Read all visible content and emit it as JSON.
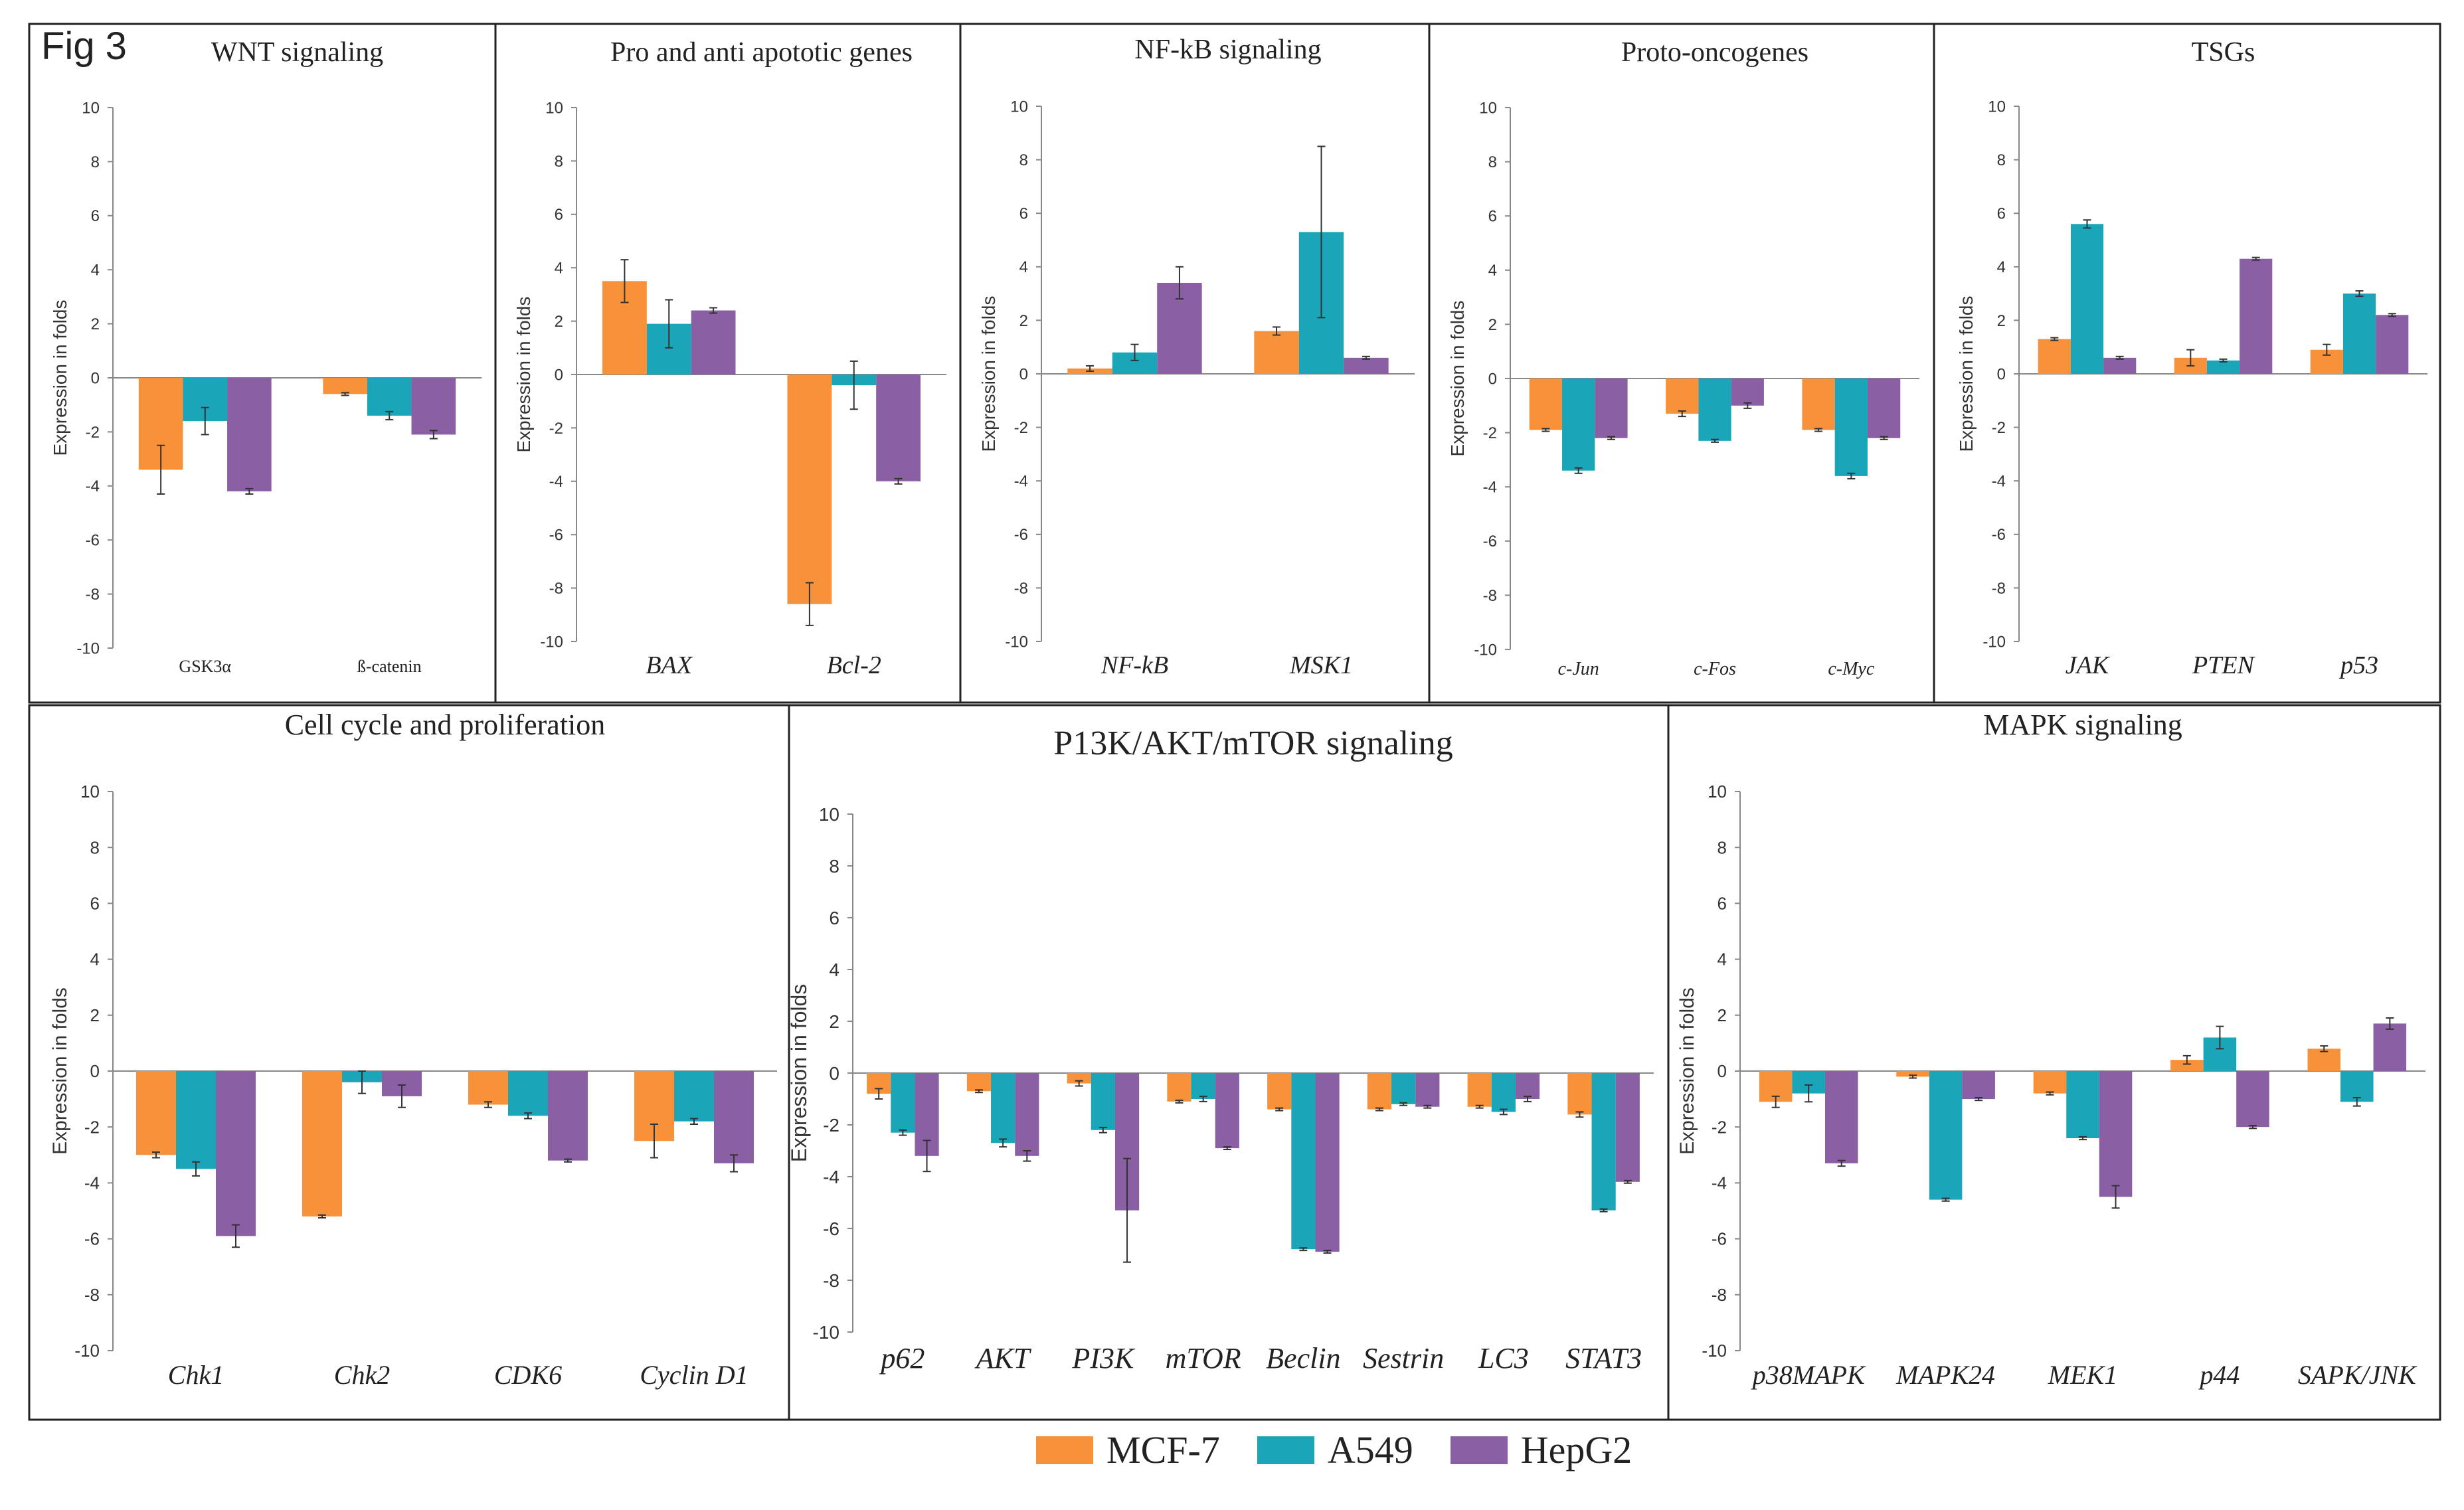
{
  "figure_label": "Fig 3",
  "legend": [
    {
      "name": "MCF-7",
      "color": "#F7923A"
    },
    {
      "name": "A549",
      "color": "#1AA6B8"
    },
    {
      "name": "HepG2",
      "color": "#8A5FA4"
    }
  ],
  "chart_data": [
    {
      "type": "bar",
      "title": "WNT signaling",
      "ylabel": "Expression in folds",
      "ylim": [
        -10,
        10
      ],
      "yticks": [
        -10,
        -8,
        -6,
        -4,
        -2,
        0,
        2,
        4,
        6,
        8,
        10
      ],
      "italic_categories": false,
      "categories": [
        "GSK3α",
        "ß-catenin"
      ],
      "series": [
        {
          "name": "MCF-7",
          "values": [
            -3.4,
            -0.6
          ],
          "errors": [
            0.9,
            0.05
          ]
        },
        {
          "name": "A549",
          "values": [
            -1.6,
            -1.4
          ],
          "errors": [
            0.5,
            0.15
          ]
        },
        {
          "name": "HepG2",
          "values": [
            -4.2,
            -2.1
          ],
          "errors": [
            0.1,
            0.15
          ]
        }
      ]
    },
    {
      "type": "bar",
      "title": "Pro and anti apototic genes",
      "ylabel": "Expression in folds",
      "ylim": [
        -10,
        10
      ],
      "yticks": [
        -10,
        -8,
        -6,
        -4,
        -2,
        0,
        2,
        4,
        6,
        8,
        10
      ],
      "italic_categories": true,
      "categories": [
        "BAX",
        "Bcl-2"
      ],
      "series": [
        {
          "name": "MCF-7",
          "values": [
            3.5,
            -8.6
          ],
          "errors": [
            0.8,
            0.8
          ]
        },
        {
          "name": "A549",
          "values": [
            1.9,
            -0.4
          ],
          "errors": [
            0.9,
            0.9
          ]
        },
        {
          "name": "HepG2",
          "values": [
            2.4,
            -4.0
          ],
          "errors": [
            0.1,
            0.1
          ]
        }
      ]
    },
    {
      "type": "bar",
      "title": "NF-kB signaling",
      "ylabel": "Expression in folds",
      "ylim": [
        -10,
        10
      ],
      "yticks": [
        -10,
        -8,
        -6,
        -4,
        -2,
        0,
        2,
        4,
        6,
        8,
        10
      ],
      "italic_categories": true,
      "categories": [
        "NF-kB",
        "MSK1"
      ],
      "series": [
        {
          "name": "MCF-7",
          "values": [
            0.2,
            1.6
          ],
          "errors": [
            0.1,
            0.15
          ]
        },
        {
          "name": "A549",
          "values": [
            0.8,
            5.3
          ],
          "errors": [
            0.3,
            3.2
          ]
        },
        {
          "name": "HepG2",
          "values": [
            3.4,
            0.6
          ],
          "errors": [
            0.6,
            0.05
          ]
        }
      ]
    },
    {
      "type": "bar",
      "title": "Proto-oncogenes",
      "ylabel": "Expression in folds",
      "ylim": [
        -10,
        10
      ],
      "yticks": [
        -10,
        -8,
        -6,
        -4,
        -2,
        0,
        2,
        4,
        6,
        8,
        10
      ],
      "italic_categories": true,
      "categories": [
        "c-Jun",
        "c-Fos",
        "c-Myc"
      ],
      "series": [
        {
          "name": "MCF-7",
          "values": [
            -1.9,
            -1.3,
            -1.9
          ],
          "errors": [
            0.05,
            0.1,
            0.05
          ]
        },
        {
          "name": "A549",
          "values": [
            -3.4,
            -2.3,
            -3.6
          ],
          "errors": [
            0.1,
            0.05,
            0.1
          ]
        },
        {
          "name": "HepG2",
          "values": [
            -2.2,
            -1.0,
            -2.2
          ],
          "errors": [
            0.05,
            0.1,
            0.05
          ]
        }
      ]
    },
    {
      "type": "bar",
      "title": "TSGs",
      "ylabel": "Expression in folds",
      "ylim": [
        -10,
        10
      ],
      "yticks": [
        -10,
        -8,
        -6,
        -4,
        -2,
        0,
        2,
        4,
        6,
        8,
        10
      ],
      "italic_categories": true,
      "categories": [
        "JAK",
        "PTEN",
        "p53"
      ],
      "series": [
        {
          "name": "MCF-7",
          "values": [
            1.3,
            0.6,
            0.9
          ],
          "errors": [
            0.05,
            0.3,
            0.2
          ]
        },
        {
          "name": "A549",
          "values": [
            5.6,
            0.5,
            3.0
          ],
          "errors": [
            0.15,
            0.05,
            0.1
          ]
        },
        {
          "name": "HepG2",
          "values": [
            0.6,
            4.3,
            2.2
          ],
          "errors": [
            0.05,
            0.05,
            0.05
          ]
        }
      ]
    },
    {
      "type": "bar",
      "title": "Cell cycle and proliferation",
      "ylabel": "Expression in folds",
      "ylim": [
        -10,
        10
      ],
      "yticks": [
        -10,
        -8,
        -6,
        -4,
        -2,
        0,
        2,
        4,
        6,
        8,
        10
      ],
      "italic_categories": true,
      "categories": [
        "Chk1",
        "Chk2",
        "CDK6",
        "Cyclin D1"
      ],
      "series": [
        {
          "name": "MCF-7",
          "values": [
            -3.0,
            -5.2,
            -1.2,
            -2.5
          ],
          "errors": [
            0.1,
            0.05,
            0.1,
            0.6
          ]
        },
        {
          "name": "A549",
          "values": [
            -3.5,
            -0.4,
            -1.6,
            -1.8
          ],
          "errors": [
            0.25,
            0.4,
            0.1,
            0.1
          ]
        },
        {
          "name": "HepG2",
          "values": [
            -5.9,
            -0.9,
            -3.2,
            -3.3
          ],
          "errors": [
            0.4,
            0.4,
            0.05,
            0.3
          ]
        }
      ]
    },
    {
      "type": "bar",
      "title": "P13K/AKT/mTOR signaling",
      "ylabel": "Expression in folds",
      "ylim": [
        -10,
        10
      ],
      "yticks": [
        -10,
        -8,
        -6,
        -4,
        -2,
        0,
        2,
        4,
        6,
        8,
        10
      ],
      "italic_categories": true,
      "categories": [
        "p62",
        "AKT",
        "PI3K",
        "mTOR",
        "Beclin",
        "Sestrin",
        "LC3",
        "STAT3"
      ],
      "series": [
        {
          "name": "MCF-7",
          "values": [
            -0.8,
            -0.7,
            -0.4,
            -1.1,
            -1.4,
            -1.4,
            -1.3,
            -1.6
          ],
          "errors": [
            0.2,
            0.05,
            0.1,
            0.05,
            0.05,
            0.05,
            0.05,
            0.1
          ]
        },
        {
          "name": "A549",
          "values": [
            -2.3,
            -2.7,
            -2.2,
            -1.0,
            -6.8,
            -1.2,
            -1.5,
            -5.3
          ],
          "errors": [
            0.1,
            0.15,
            0.1,
            0.1,
            0.05,
            0.05,
            0.1,
            0.05
          ]
        },
        {
          "name": "HepG2",
          "values": [
            -3.2,
            -3.2,
            -5.3,
            -2.9,
            -6.9,
            -1.3,
            -1.0,
            -4.2
          ],
          "errors": [
            0.6,
            0.2,
            2.0,
            0.05,
            0.05,
            0.05,
            0.1,
            0.05
          ]
        }
      ]
    },
    {
      "type": "bar",
      "title": "MAPK signaling",
      "ylabel": "Expression in folds",
      "ylim": [
        -10,
        10
      ],
      "yticks": [
        -10,
        -8,
        -6,
        -4,
        -2,
        0,
        2,
        4,
        6,
        8,
        10
      ],
      "italic_categories": true,
      "categories": [
        "p38MAPK",
        "MAPK24",
        "MEK1",
        "p44",
        "SAPK/JNK"
      ],
      "series": [
        {
          "name": "MCF-7",
          "values": [
            -1.1,
            -0.2,
            -0.8,
            0.4,
            0.8
          ],
          "errors": [
            0.2,
            0.05,
            0.05,
            0.15,
            0.1
          ]
        },
        {
          "name": "A549",
          "values": [
            -0.8,
            -4.6,
            -2.4,
            1.2,
            -1.1
          ],
          "errors": [
            0.3,
            0.05,
            0.05,
            0.4,
            0.15
          ]
        },
        {
          "name": "HepG2",
          "values": [
            -3.3,
            -1.0,
            -4.5,
            -2.0,
            1.7
          ],
          "errors": [
            0.1,
            0.05,
            0.4,
            0.05,
            0.2
          ]
        }
      ]
    }
  ]
}
